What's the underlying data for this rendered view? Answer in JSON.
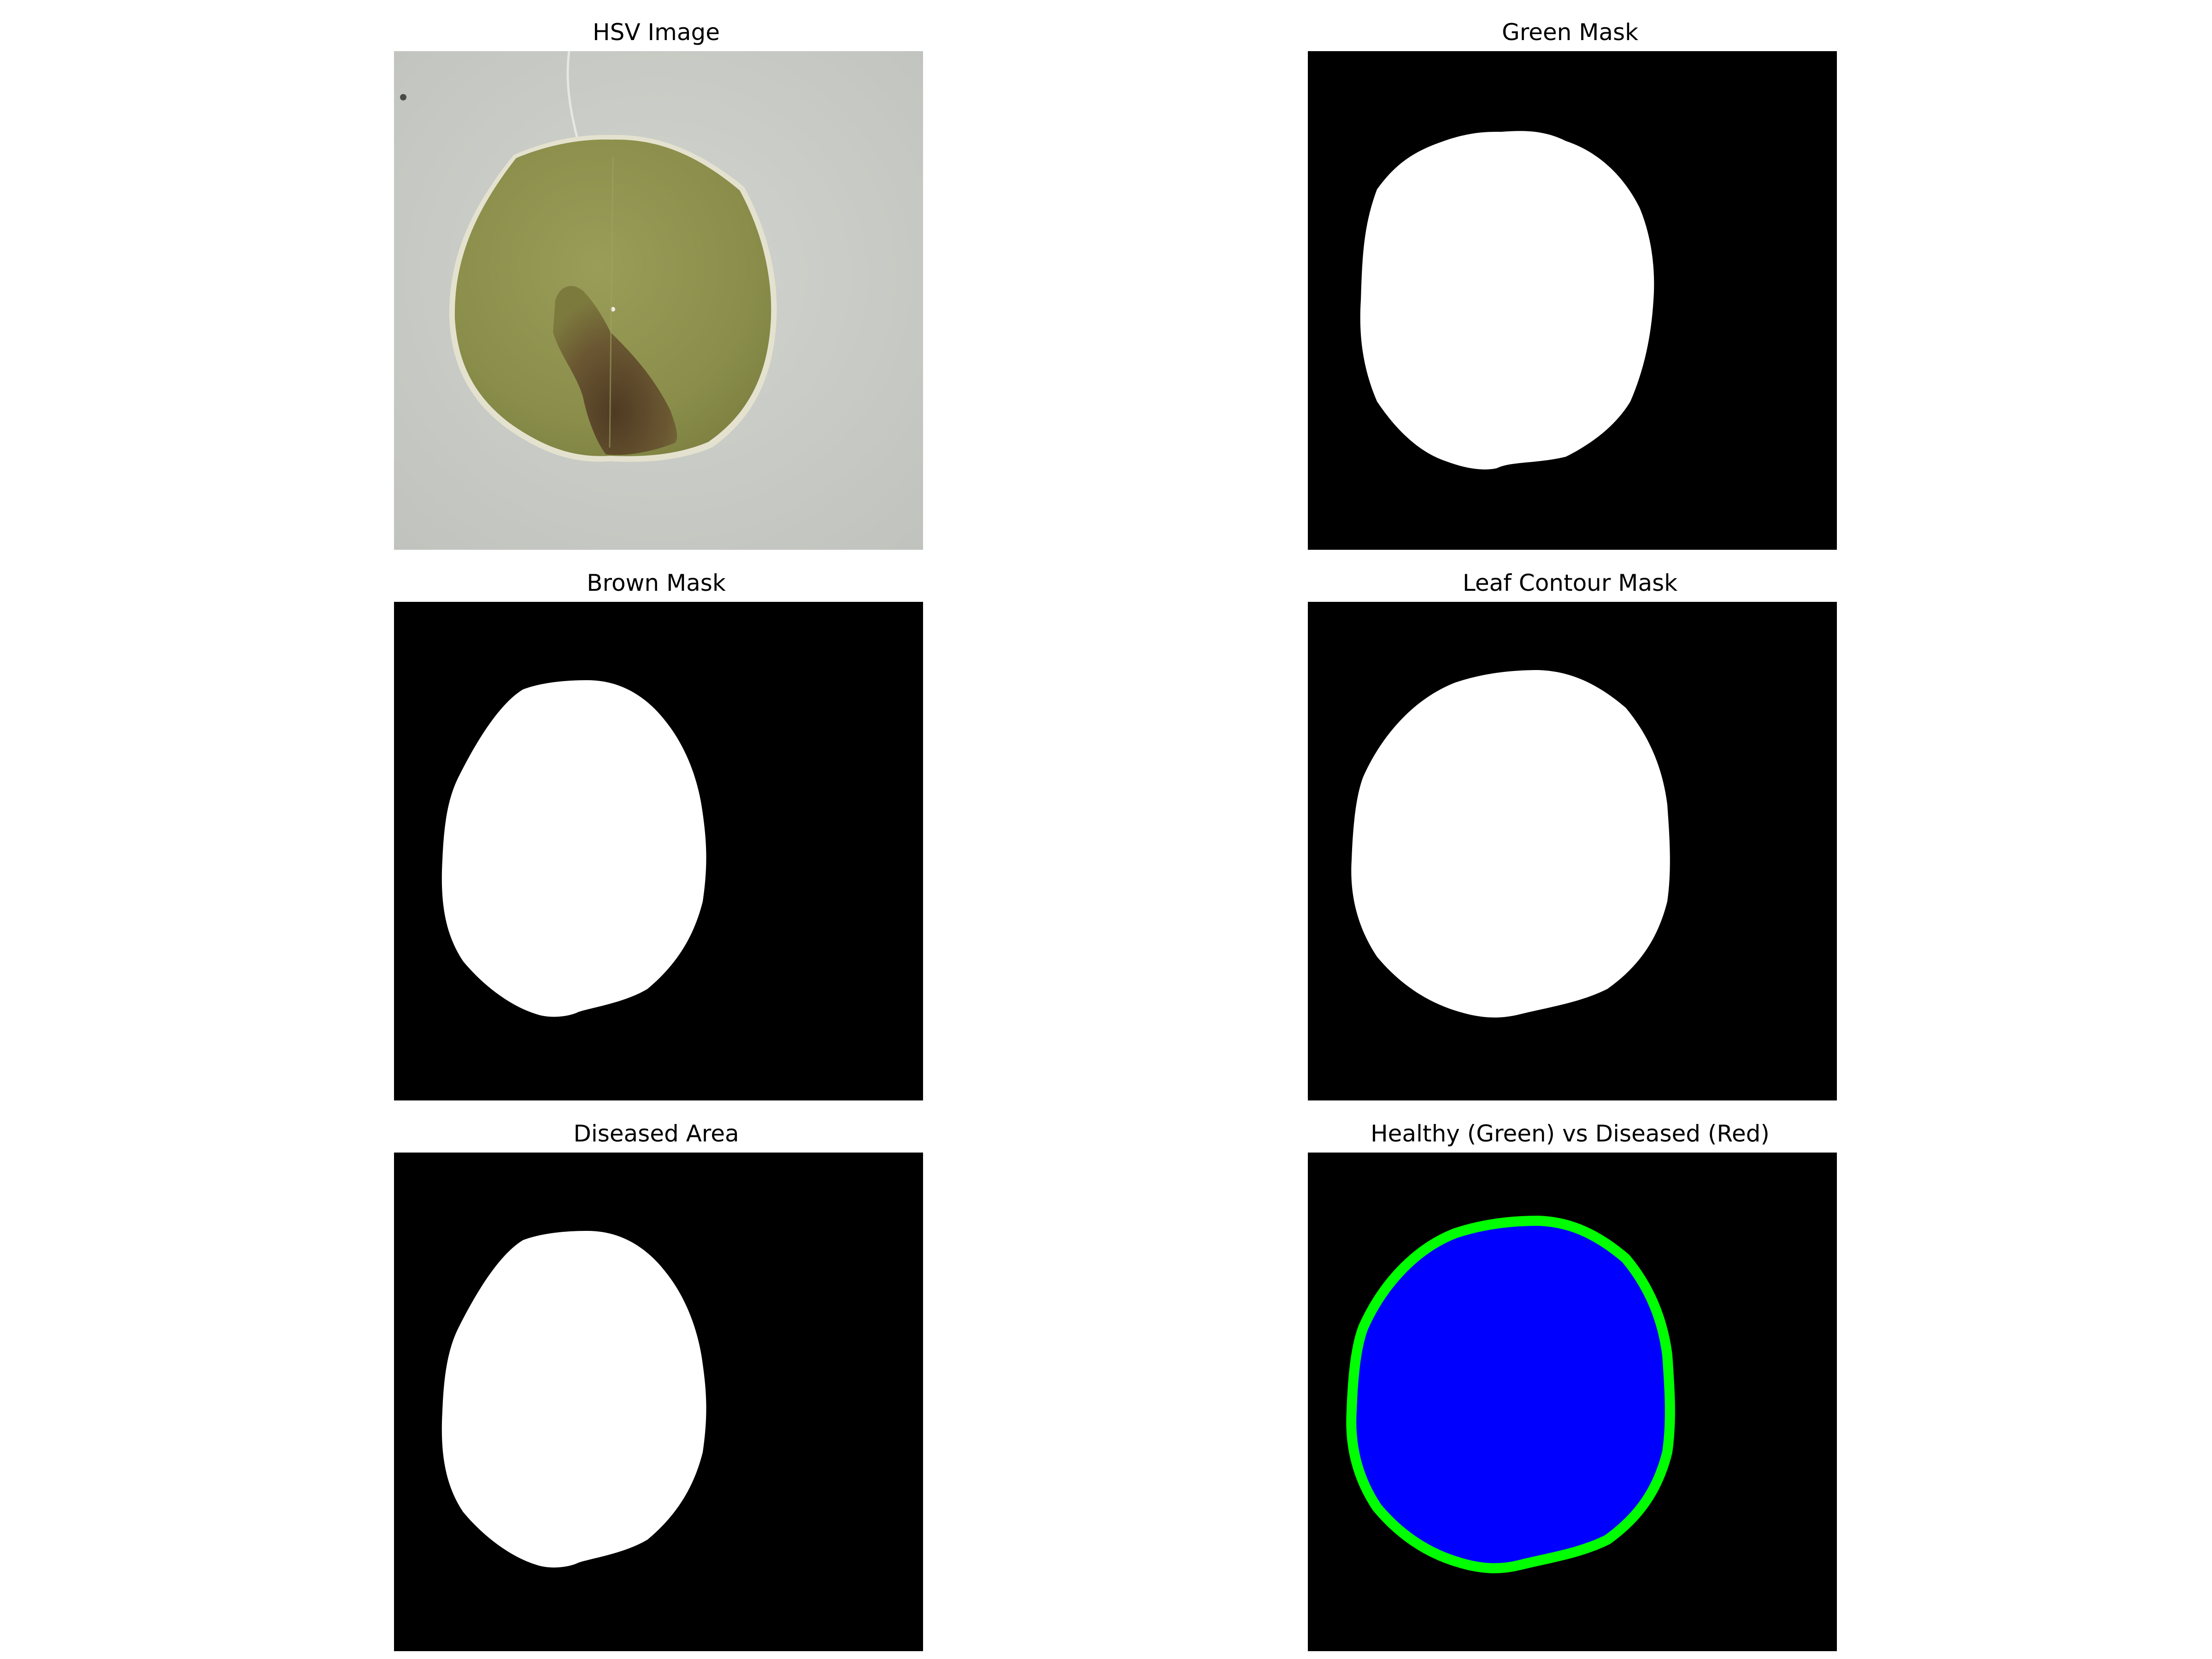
{
  "figure": {
    "panels": [
      {
        "id": "hsv",
        "title": "HSV Image"
      },
      {
        "id": "green-mask",
        "title": "Green Mask"
      },
      {
        "id": "brown-mask",
        "title": "Brown Mask"
      },
      {
        "id": "leaf-contour",
        "title": "Leaf Contour Mask"
      },
      {
        "id": "diseased",
        "title": "Diseased Area"
      },
      {
        "id": "overlay",
        "title": "Healthy (Green) vs Diseased (Red)"
      }
    ]
  },
  "colors": {
    "background": "#ffffff",
    "mask_background": "#000000",
    "mask_fill": "#ffffff",
    "leaf": "#8f9350",
    "paper": "#c9cbc6",
    "lesion": "#5e4a2a",
    "overlay_fill": "#0000ff",
    "overlay_contour": "#00ff00"
  }
}
